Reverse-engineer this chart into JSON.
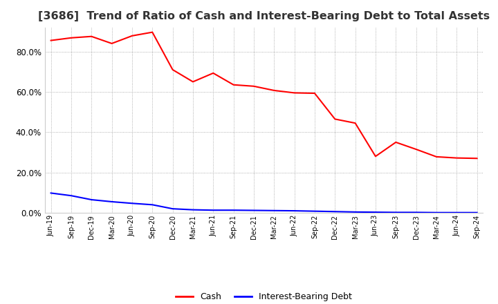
{
  "title": "[3686]  Trend of Ratio of Cash and Interest-Bearing Debt to Total Assets",
  "x_labels": [
    "Jun-19",
    "Sep-19",
    "Dec-19",
    "Mar-20",
    "Jun-20",
    "Sep-20",
    "Dec-20",
    "Mar-21",
    "Jun-21",
    "Sep-21",
    "Dec-21",
    "Mar-22",
    "Jun-22",
    "Sep-22",
    "Dec-22",
    "Mar-23",
    "Jun-23",
    "Sep-23",
    "Dec-23",
    "Mar-24",
    "Jun-24",
    "Sep-24"
  ],
  "cash": [
    0.855,
    0.868,
    0.875,
    0.84,
    0.878,
    0.896,
    0.71,
    0.65,
    0.693,
    0.635,
    0.628,
    0.607,
    0.595,
    0.593,
    0.465,
    0.445,
    0.28,
    0.35,
    0.315,
    0.278,
    0.272,
    0.27
  ],
  "interest_bearing_debt": [
    0.098,
    0.085,
    0.065,
    0.055,
    0.047,
    0.04,
    0.02,
    0.015,
    0.013,
    0.013,
    0.012,
    0.011,
    0.01,
    0.008,
    0.006,
    0.004,
    0.003,
    0.002,
    0.002,
    0.001,
    0.001,
    0.001
  ],
  "cash_color": "#ff0000",
  "debt_color": "#0000ff",
  "background_color": "#ffffff",
  "grid_color": "#999999",
  "ylim": [
    0.0,
    0.92
  ],
  "yticks": [
    0.0,
    0.2,
    0.4,
    0.6,
    0.8
  ],
  "title_fontsize": 11.5,
  "legend_labels": [
    "Cash",
    "Interest-Bearing Debt"
  ],
  "line_width": 1.5
}
